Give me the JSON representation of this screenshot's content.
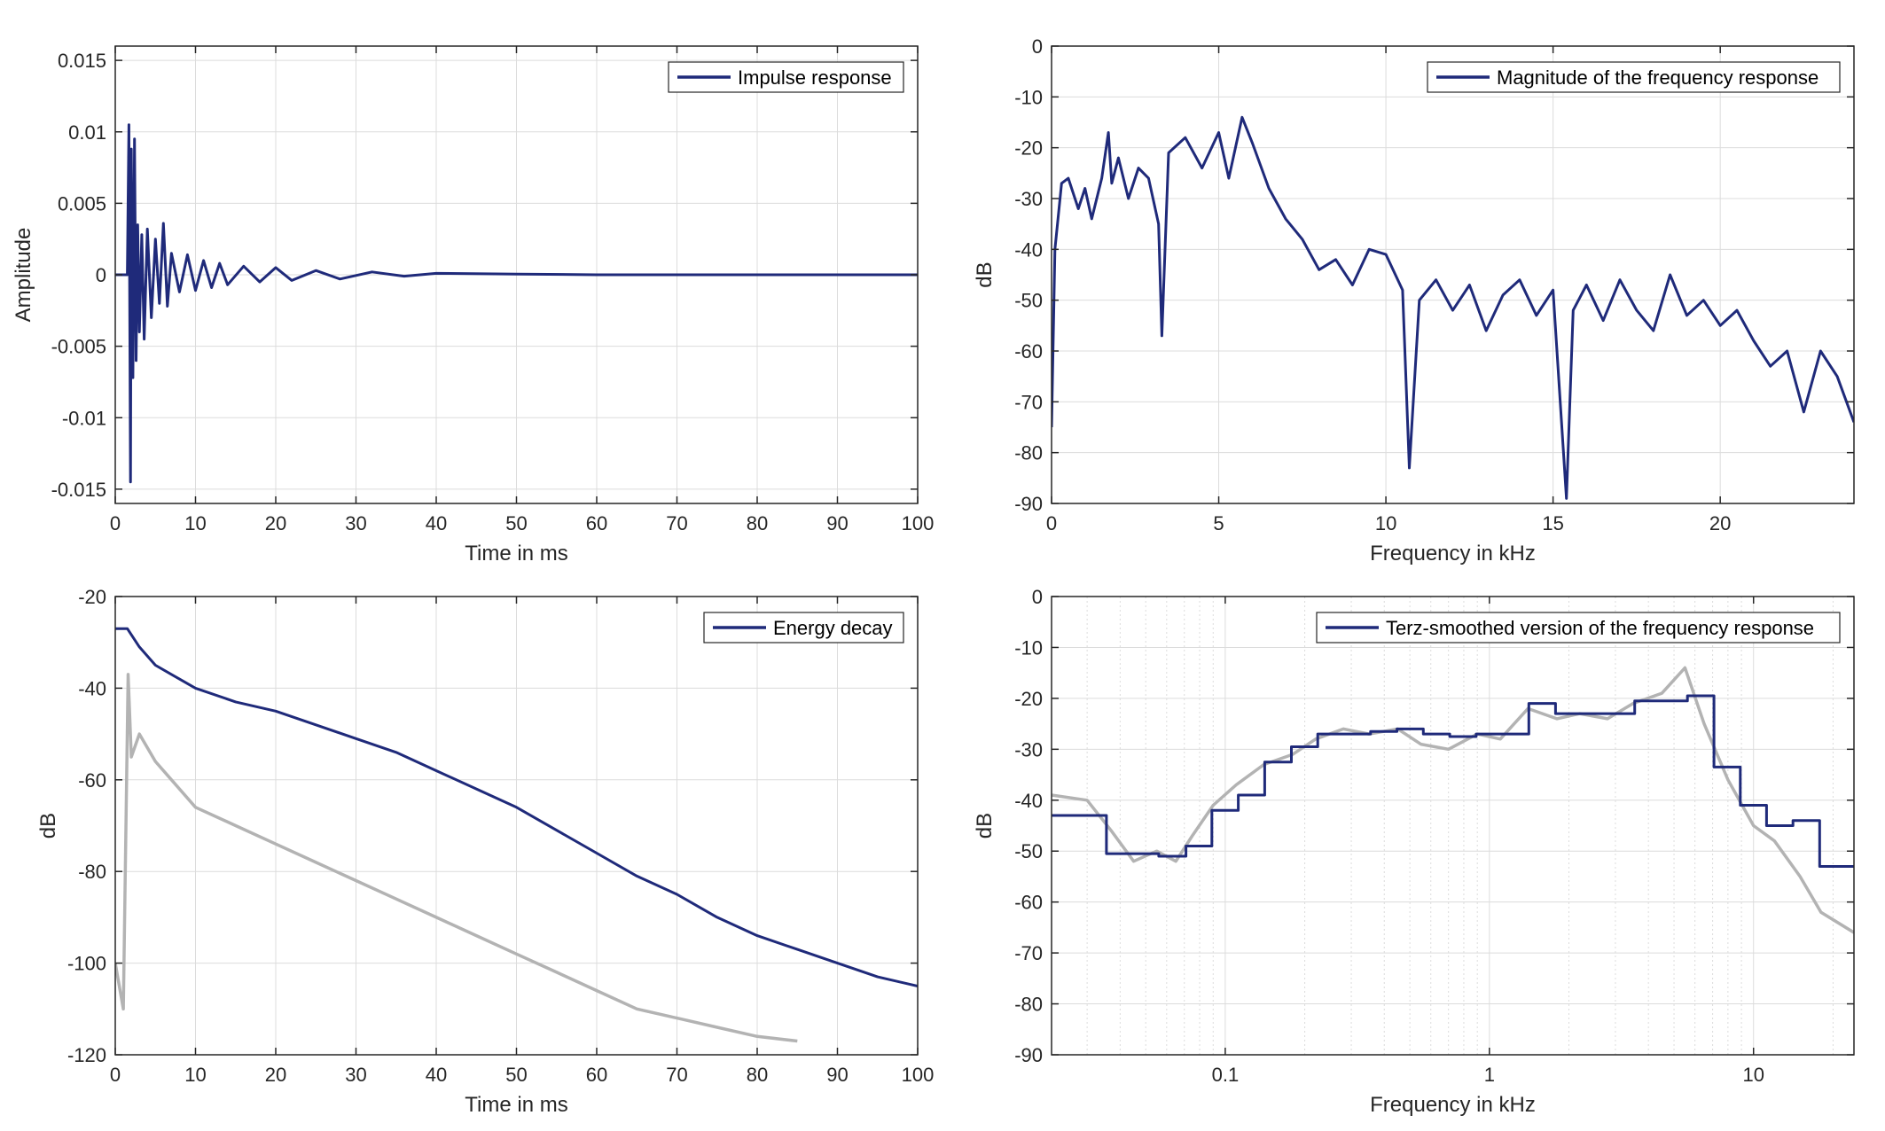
{
  "colors": {
    "series": "#1f2a7a",
    "gray": "#b3b3b3",
    "grid": "#dcdcdc",
    "axis": "#262626"
  },
  "chart_data": [
    {
      "type": "line",
      "xlabel": "Time in ms",
      "ylabel": "Amplitude",
      "xlim": [
        0,
        100
      ],
      "ylim": [
        -0.016,
        0.016
      ],
      "xticks": [
        0,
        10,
        20,
        30,
        40,
        50,
        60,
        70,
        80,
        90,
        100
      ],
      "xticklabels": [
        "0",
        "10",
        "20",
        "30",
        "40",
        "50",
        "60",
        "70",
        "80",
        "90",
        "100"
      ],
      "yticks": [
        0.015,
        0.01,
        0.005,
        0,
        -0.005,
        -0.01,
        -0.015
      ],
      "yticklabels": [
        "0.015",
        "0.01",
        "0.005",
        "0",
        "-0.005",
        "-0.01",
        "-0.015"
      ],
      "grid": true,
      "legend": "top-right",
      "series": [
        {
          "name": "Impulse response",
          "x": [
            0,
            1.5,
            1.7,
            1.9,
            2.0,
            2.2,
            2.4,
            2.6,
            2.8,
            3.0,
            3.3,
            3.6,
            4.0,
            4.5,
            5.0,
            5.5,
            6.0,
            6.5,
            7.0,
            8.0,
            9.0,
            10.0,
            11.0,
            12.0,
            13.0,
            14.0,
            16.0,
            18.0,
            20.0,
            22.0,
            25.0,
            28.0,
            32.0,
            36.0,
            40.0,
            50.0,
            60.0,
            100.0
          ],
          "y": [
            0,
            0,
            0.0105,
            -0.0145,
            0.0088,
            -0.0072,
            0.0095,
            -0.006,
            0.0035,
            -0.004,
            0.0028,
            -0.0045,
            0.0032,
            -0.003,
            0.0025,
            -0.002,
            0.0036,
            -0.0022,
            0.0015,
            -0.0012,
            0.0014,
            -0.0011,
            0.001,
            -0.0009,
            0.0008,
            -0.0007,
            0.0006,
            -0.0005,
            0.0005,
            -0.0004,
            0.0003,
            -0.0003,
            0.0002,
            -0.0001,
            0.0001,
            5e-05,
            0,
            0
          ]
        }
      ]
    },
    {
      "type": "line",
      "xlabel": "Frequency in kHz",
      "ylabel": "dB",
      "xlim": [
        0,
        24
      ],
      "ylim": [
        -90,
        0
      ],
      "xticks": [
        0,
        5,
        10,
        15,
        20
      ],
      "xticklabels": [
        "0",
        "5",
        "10",
        "15",
        "20"
      ],
      "yticks": [
        0,
        -10,
        -20,
        -30,
        -40,
        -50,
        -60,
        -70,
        -80,
        -90
      ],
      "yticklabels": [
        "0",
        "-10",
        "-20",
        "-30",
        "-40",
        "-50",
        "-60",
        "-70",
        "-80",
        "-90"
      ],
      "grid": true,
      "legend": "top-right",
      "series": [
        {
          "name": "Magnitude of the frequency response",
          "x": [
            0,
            0.1,
            0.3,
            0.5,
            0.8,
            1.0,
            1.2,
            1.5,
            1.7,
            1.8,
            2.0,
            2.3,
            2.6,
            2.9,
            3.2,
            3.3,
            3.5,
            4.0,
            4.5,
            5.0,
            5.3,
            5.7,
            6.0,
            6.5,
            7.0,
            7.5,
            8.0,
            8.5,
            9.0,
            9.5,
            10.0,
            10.5,
            10.7,
            11.0,
            11.5,
            12.0,
            12.5,
            13.0,
            13.5,
            14.0,
            14.5,
            15.0,
            15.4,
            15.6,
            16.0,
            16.5,
            17.0,
            17.5,
            18.0,
            18.5,
            19.0,
            19.5,
            20.0,
            20.5,
            21.0,
            21.5,
            22.0,
            22.5,
            23.0,
            23.5,
            24.0
          ],
          "y": [
            -75,
            -40,
            -27,
            -26,
            -32,
            -28,
            -34,
            -26,
            -17,
            -27,
            -22,
            -30,
            -24,
            -26,
            -35,
            -57,
            -21,
            -18,
            -24,
            -17,
            -26,
            -14,
            -19,
            -28,
            -34,
            -38,
            -44,
            -42,
            -47,
            -40,
            -41,
            -48,
            -83,
            -50,
            -46,
            -52,
            -47,
            -56,
            -49,
            -46,
            -53,
            -48,
            -89,
            -52,
            -47,
            -54,
            -46,
            -52,
            -56,
            -45,
            -53,
            -50,
            -55,
            -52,
            -58,
            -63,
            -60,
            -72,
            -60,
            -65,
            -74
          ]
        }
      ]
    },
    {
      "type": "line",
      "xlabel": "Time in ms",
      "ylabel": "dB",
      "xlim": [
        0,
        100
      ],
      "ylim": [
        -120,
        -20
      ],
      "xticks": [
        0,
        10,
        20,
        30,
        40,
        50,
        60,
        70,
        80,
        90,
        100
      ],
      "xticklabels": [
        "0",
        "10",
        "20",
        "30",
        "40",
        "50",
        "60",
        "70",
        "80",
        "90",
        "100"
      ],
      "yticks": [
        -20,
        -40,
        -60,
        -80,
        -100,
        -120
      ],
      "yticklabels": [
        "-20",
        "-40",
        "-60",
        "-80",
        "-100",
        "-120"
      ],
      "grid": true,
      "legend": "top-right",
      "series": [
        {
          "name": "Energy decay",
          "x": [
            0,
            1.5,
            3,
            5,
            8,
            10,
            15,
            20,
            25,
            30,
            35,
            40,
            45,
            50,
            55,
            60,
            65,
            70,
            75,
            80,
            85,
            90,
            95,
            100
          ],
          "y": [
            -27,
            -27,
            -31,
            -35,
            -38,
            -40,
            -43,
            -45,
            -48,
            -51,
            -54,
            -58,
            -62,
            -66,
            -71,
            -76,
            -81,
            -85,
            -90,
            -94,
            -97,
            -100,
            -103,
            -105
          ]
        },
        {
          "name": "",
          "x": [
            0,
            1,
            1.6,
            2,
            3,
            5,
            7,
            10,
            15,
            20,
            25,
            30,
            35,
            40,
            45,
            50,
            55,
            60,
            65,
            70,
            75,
            80,
            85
          ],
          "y": [
            -100,
            -110,
            -37,
            -55,
            -50,
            -56,
            -60,
            -66,
            -70,
            -74,
            -78,
            -82,
            -86,
            -90,
            -94,
            -98,
            -102,
            -106,
            -110,
            -112,
            -114,
            -116,
            -117
          ]
        }
      ]
    },
    {
      "type": "line",
      "xlabel": "Frequency in kHz",
      "ylabel": "dB",
      "xscale": "log",
      "xlim": [
        0.022,
        24
      ],
      "ylim": [
        -90,
        0
      ],
      "xticks": [
        0.1,
        1,
        10
      ],
      "xticklabels": [
        "0.1",
        "1",
        "10"
      ],
      "yticks": [
        0,
        -10,
        -20,
        -30,
        -40,
        -50,
        -60,
        -70,
        -80,
        -90
      ],
      "yticklabels": [
        "0",
        "-10",
        "-20",
        "-30",
        "-40",
        "-50",
        "-60",
        "-70",
        "-80",
        "-90"
      ],
      "grid": true,
      "legend": "top-right",
      "series": [
        {
          "name": "Terz-smoothed version of the frequency response",
          "x": [
            0.022,
            0.0355,
            0.0355,
            0.056,
            0.056,
            0.071,
            0.071,
            0.089,
            0.089,
            0.112,
            0.112,
            0.141,
            0.141,
            0.178,
            0.178,
            0.224,
            0.224,
            0.355,
            0.355,
            0.447,
            0.447,
            0.562,
            0.562,
            0.708,
            0.708,
            0.891,
            0.891,
            1.41,
            1.41,
            1.78,
            1.78,
            3.55,
            3.55,
            5.62,
            5.62,
            7.08,
            7.08,
            8.91,
            8.91,
            11.2,
            11.2,
            14.1,
            14.1,
            17.8,
            17.8,
            24
          ],
          "y": [
            -43,
            -43,
            -50.5,
            -50.5,
            -51,
            -51,
            -49,
            -49,
            -42,
            -42,
            -39,
            -39,
            -32.5,
            -32.5,
            -29.5,
            -29.5,
            -27,
            -27,
            -26.5,
            -26.5,
            -26,
            -26,
            -27,
            -27,
            -27.5,
            -27.5,
            -27,
            -27,
            -21,
            -21,
            -23,
            -23,
            -20.5,
            -20.5,
            -19.5,
            -19.5,
            -33.5,
            -33.5,
            -41,
            -41,
            -45,
            -45,
            -44,
            -44,
            -53,
            -53
          ]
        },
        {
          "name": "",
          "x": [
            0.022,
            0.03,
            0.037,
            0.045,
            0.055,
            0.065,
            0.075,
            0.09,
            0.11,
            0.14,
            0.18,
            0.22,
            0.28,
            0.35,
            0.45,
            0.55,
            0.7,
            0.9,
            1.1,
            1.4,
            1.8,
            2.2,
            2.8,
            3.5,
            4.5,
            5.5,
            6.5,
            8,
            10,
            12,
            15,
            18,
            24
          ],
          "y": [
            -39,
            -40,
            -46,
            -52,
            -50,
            -52,
            -47,
            -41,
            -37,
            -33,
            -31,
            -28,
            -26,
            -27,
            -26,
            -29,
            -30,
            -27,
            -28,
            -22,
            -24,
            -23,
            -24,
            -21,
            -19,
            -14,
            -25,
            -36,
            -45,
            -48,
            -55,
            -62,
            -66
          ]
        }
      ]
    }
  ]
}
